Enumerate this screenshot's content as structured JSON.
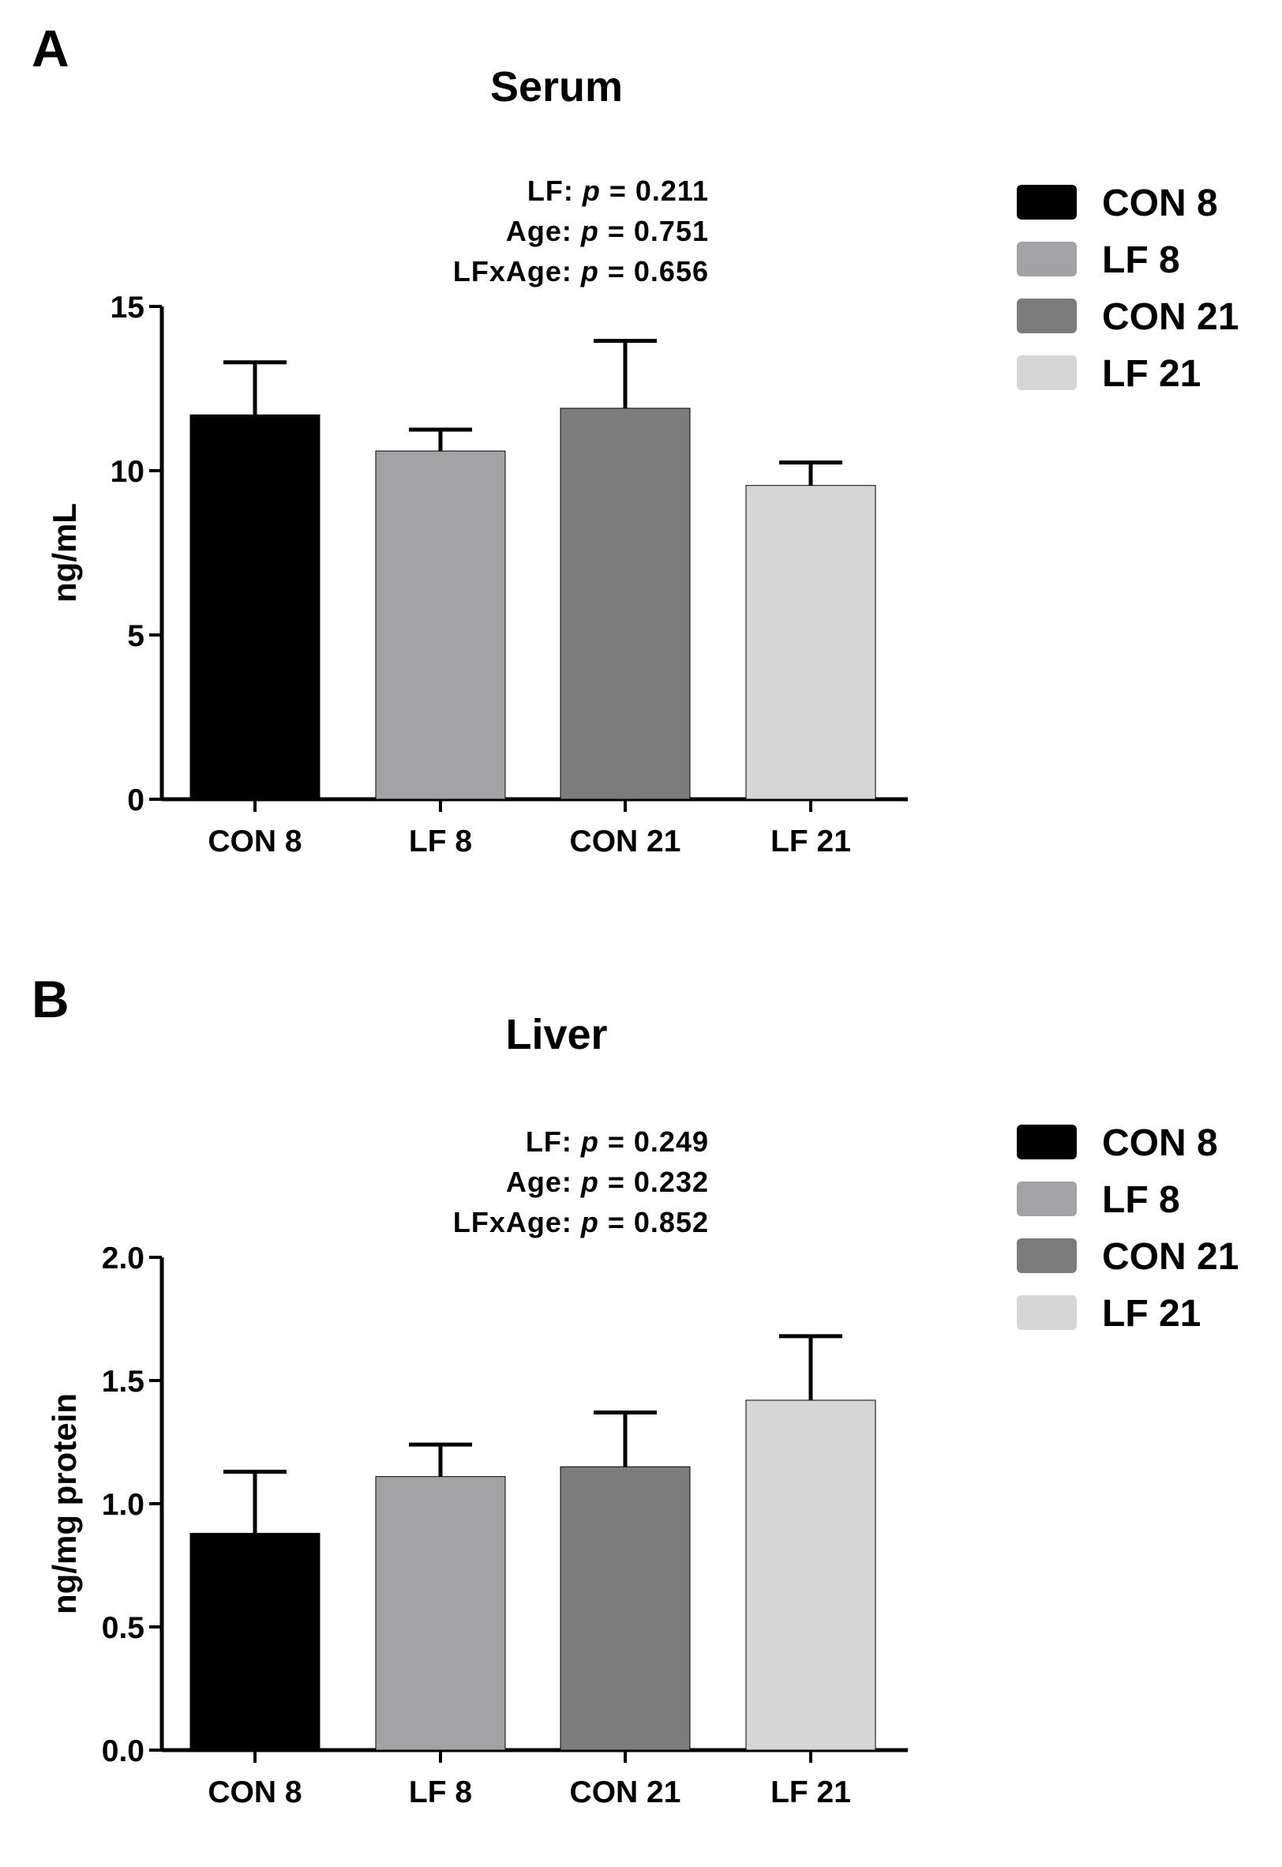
{
  "panels": [
    {
      "letter": "A",
      "stats": {
        "lf_prefix": "LF: ",
        "lf_p": "p",
        "lf_value": " = 0.211",
        "age_prefix": "Age: ",
        "age_p": "p",
        "age_value": " = 0.751",
        "inter_prefix": "LFxAge: ",
        "inter_p": "p",
        "inter_value": " = 0.656"
      }
    },
    {
      "letter": "B",
      "stats": {
        "lf_prefix": "LF: ",
        "lf_p": "p",
        "lf_value": " = 0.249",
        "age_prefix": "Age: ",
        "age_p": "p",
        "age_value": " = 0.232",
        "inter_prefix": "LFxAge: ",
        "inter_p": "p",
        "inter_value": " = 0.852"
      }
    }
  ],
  "colors": {
    "CON 8": "#000000",
    "LF 8": "#a3a3a6",
    "CON 21": "#7c7c7c",
    "LF 21": "#d6d6d6"
  },
  "chart_data": [
    {
      "type": "bar",
      "title": "Serum",
      "xlabel": "",
      "ylabel": "ng/mL",
      "categories": [
        "CON 8",
        "LF 8",
        "CON 21",
        "LF 21"
      ],
      "values": [
        11.7,
        10.6,
        11.9,
        9.55
      ],
      "errors": [
        1.6,
        0.65,
        2.05,
        0.7
      ],
      "ylim": [
        0,
        15
      ],
      "yticks": [
        0,
        5,
        10,
        15
      ],
      "ytick_labels": [
        "0",
        "5",
        "10",
        "15"
      ],
      "legend": [
        "CON 8",
        "LF 8",
        "CON 21",
        "LF 21"
      ],
      "legend_position": "right"
    },
    {
      "type": "bar",
      "title": "Liver",
      "xlabel": "",
      "ylabel": "ng/mg protein",
      "categories": [
        "CON 8",
        "LF 8",
        "CON 21",
        "LF 21"
      ],
      "values": [
        0.88,
        1.11,
        1.15,
        1.42
      ],
      "errors": [
        0.25,
        0.13,
        0.22,
        0.26
      ],
      "ylim": [
        0,
        2.0
      ],
      "yticks": [
        0,
        0.5,
        1.0,
        1.5,
        2.0
      ],
      "ytick_labels": [
        "0.0",
        "0.5",
        "1.0",
        "1.5",
        "2.0"
      ],
      "legend": [
        "CON 8",
        "LF 8",
        "CON 21",
        "LF 21"
      ],
      "legend_position": "right"
    }
  ]
}
